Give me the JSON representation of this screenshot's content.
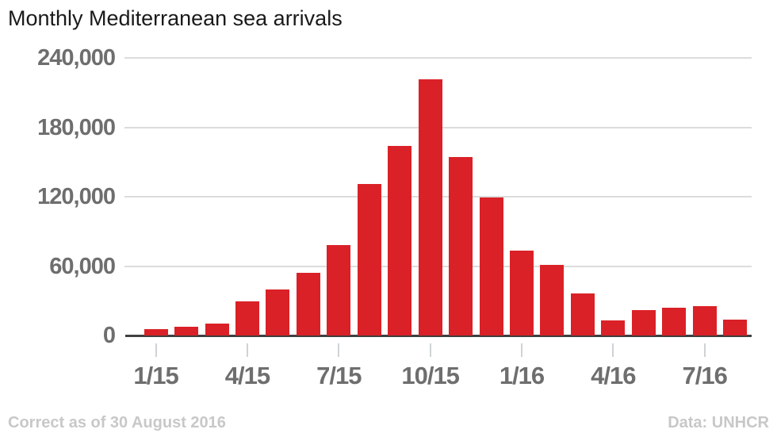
{
  "header": {
    "title": "Monthly Mediterranean sea arrivals"
  },
  "footer": {
    "left": "Correct as of 30 August 2016",
    "right": "Data: UNHCR"
  },
  "colors": {
    "bar": "#da2127",
    "gridline": "#dcdcdc",
    "axis": "#404040",
    "tick": "#cfd3d6",
    "axis_label": "#6e6e6e",
    "footer_text": "#c8c8c8",
    "title_text": "#1a1a1a"
  },
  "chart_data": {
    "type": "bar",
    "title": "Monthly Mediterranean sea arrivals",
    "xlabel": "",
    "ylabel": "",
    "categories": [
      "1/15",
      "2/15",
      "3/15",
      "4/15",
      "5/15",
      "6/15",
      "7/15",
      "8/15",
      "9/15",
      "10/15",
      "11/15",
      "12/15",
      "1/16",
      "2/16",
      "3/16",
      "4/16",
      "5/16",
      "6/16",
      "7/16",
      "8/16"
    ],
    "values": [
      5500,
      7300,
      10300,
      29700,
      40000,
      54500,
      78400,
      130700,
      163800,
      221400,
      154500,
      119000,
      73400,
      60900,
      36600,
      12800,
      21700,
      23900,
      25500,
      14000
    ],
    "ylim": [
      0,
      240000
    ],
    "grid": true,
    "legend": "none",
    "yticks": [
      {
        "value": 240000,
        "label": "240,000"
      },
      {
        "value": 180000,
        "label": "180,000"
      },
      {
        "value": 120000,
        "label": "120,000"
      },
      {
        "value": 60000,
        "label": "60,000"
      },
      {
        "value": 0,
        "label": "0"
      }
    ],
    "xticks": [
      {
        "index": 0,
        "label": "1/15"
      },
      {
        "index": 3,
        "label": "4/15"
      },
      {
        "index": 6,
        "label": "7/15"
      },
      {
        "index": 9,
        "label": "10/15"
      },
      {
        "index": 12,
        "label": "1/16"
      },
      {
        "index": 15,
        "label": "4/16"
      },
      {
        "index": 18,
        "label": "7/16"
      }
    ]
  }
}
